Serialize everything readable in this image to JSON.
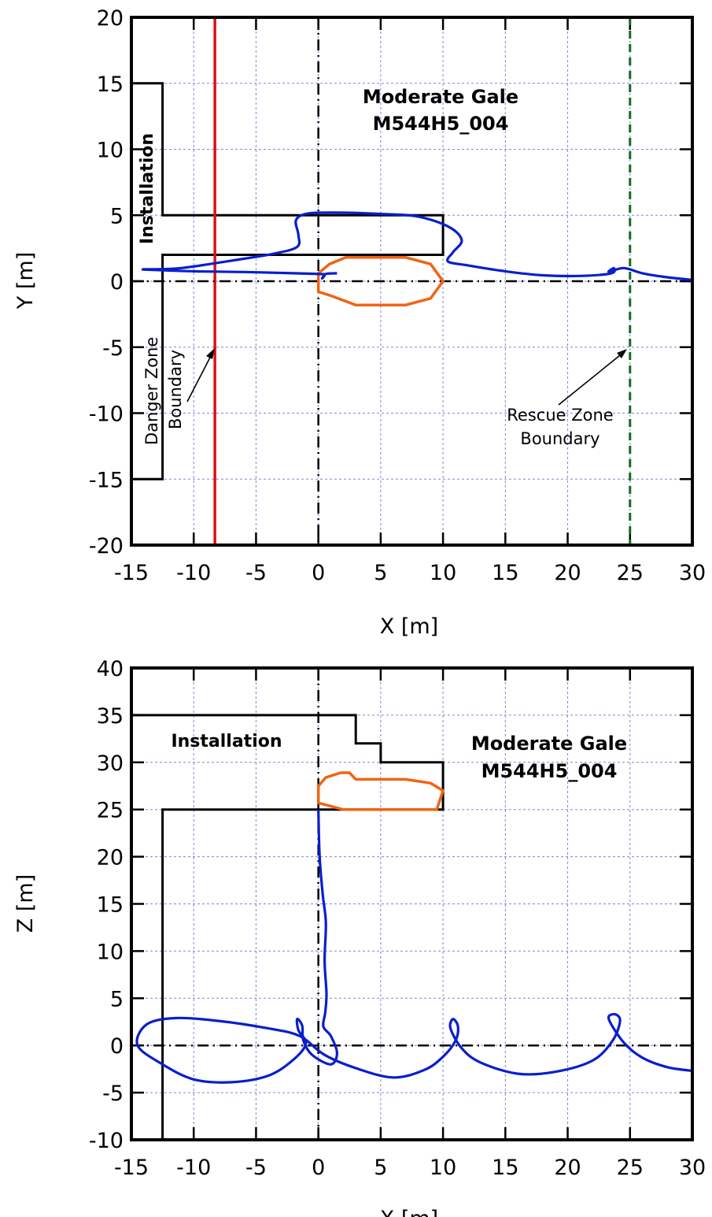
{
  "chart_data": [
    {
      "id": "xy",
      "type": "line",
      "title": "Moderate Gale",
      "subtitle": "M544H5_004",
      "xlabel": "X [m]",
      "ylabel": "Y [m]",
      "xlim": [
        -15,
        30
      ],
      "ylim": [
        -20,
        20
      ],
      "xticks": [
        -15,
        -10,
        -5,
        0,
        5,
        10,
        15,
        20,
        25,
        30
      ],
      "yticks": [
        -20,
        -15,
        -10,
        -5,
        0,
        5,
        10,
        15,
        20
      ],
      "xtick_labels": [
        "-15",
        "-10",
        "-5",
        "0",
        "5",
        "10",
        "15",
        "20",
        "25",
        "30"
      ],
      "ytick_labels": [
        "-20",
        "-15",
        "-10",
        "-5",
        "0",
        "5",
        "10",
        "15",
        "20"
      ],
      "grid": true,
      "annotations": {
        "installation": "Installation",
        "danger_zone": [
          "Danger Zone",
          "Boundary"
        ],
        "rescue_zone": [
          "Rescue Zone",
          "Boundary"
        ]
      },
      "danger_boundary_x": -8.3,
      "rescue_boundary_x": 25,
      "colors": {
        "trajectory": "#0a1ecc",
        "lifeboat": "#f06414",
        "danger": "#e01010",
        "rescue": "#0f6e1e",
        "structure": "#000000"
      },
      "installation_outline": [
        [
          -15,
          15
        ],
        [
          -12.5,
          15
        ],
        [
          -12.5,
          5
        ],
        [
          10,
          5
        ],
        [
          10,
          2
        ],
        [
          -12.5,
          2
        ],
        [
          -12.5,
          -15
        ],
        [
          -15,
          -15
        ]
      ],
      "lifeboat_outline": [
        [
          0,
          -0.8
        ],
        [
          0,
          0.6
        ],
        [
          0.9,
          1.3
        ],
        [
          2.2,
          1.8
        ],
        [
          7,
          1.8
        ],
        [
          9,
          1.3
        ],
        [
          10,
          0
        ],
        [
          9,
          -1.3
        ],
        [
          7,
          -1.8
        ],
        [
          3,
          -1.8
        ],
        [
          1,
          -1.1
        ],
        [
          0,
          -0.8
        ]
      ],
      "trajectory": [
        [
          1.5,
          0.6
        ],
        [
          0.6,
          0.55
        ],
        [
          0.3,
          0.2
        ],
        [
          0.5,
          0.5
        ],
        [
          0,
          0.55
        ],
        [
          -2,
          0.6
        ],
        [
          -6,
          0.7
        ],
        [
          -10,
          0.75
        ],
        [
          -13,
          0.85
        ],
        [
          -14,
          0.9
        ],
        [
          -11,
          1.0
        ],
        [
          -6,
          1.7
        ],
        [
          -3.5,
          2.1
        ],
        [
          -1.7,
          2.6
        ],
        [
          -1.6,
          3.5
        ],
        [
          -1.8,
          4.6
        ],
        [
          -1,
          5.1
        ],
        [
          1,
          5.2
        ],
        [
          5,
          5.1
        ],
        [
          8,
          4.9
        ],
        [
          10.5,
          4.1
        ],
        [
          11.5,
          3.1
        ],
        [
          10.8,
          2.2
        ],
        [
          10.4,
          1.5
        ],
        [
          12,
          1.2
        ],
        [
          15,
          0.75
        ],
        [
          18,
          0.45
        ],
        [
          21,
          0.4
        ],
        [
          23.5,
          0.6
        ],
        [
          23.7,
          1.0
        ],
        [
          23.3,
          0.7
        ],
        [
          24.5,
          1.0
        ],
        [
          26,
          0.6
        ],
        [
          28,
          0.3
        ],
        [
          30,
          0.1
        ]
      ]
    },
    {
      "id": "xz",
      "type": "line",
      "title": "Moderate Gale",
      "subtitle": "M544H5_004",
      "xlabel": "X [m]",
      "ylabel": "Z [m]",
      "xlim": [
        -15,
        30
      ],
      "ylim": [
        -10,
        40
      ],
      "xticks": [
        -15,
        -10,
        -5,
        0,
        5,
        10,
        15,
        20,
        25,
        30
      ],
      "yticks": [
        -10,
        -5,
        0,
        5,
        10,
        15,
        20,
        25,
        30,
        35,
        40
      ],
      "xtick_labels": [
        "-15",
        "-10",
        "-5",
        "0",
        "5",
        "10",
        "15",
        "20",
        "25",
        "30"
      ],
      "ytick_labels": [
        "-10",
        "-5",
        "0",
        "5",
        "10",
        "15",
        "20",
        "25",
        "30",
        "35",
        "40"
      ],
      "grid": true,
      "annotations": {
        "installation": "Installation"
      },
      "colors": {
        "trajectory": "#0a1ecc",
        "lifeboat": "#f06414",
        "structure": "#000000"
      },
      "installation_outline": [
        [
          -15,
          35
        ],
        [
          3,
          35
        ],
        [
          3,
          32
        ],
        [
          5,
          32
        ],
        [
          5,
          30
        ],
        [
          10,
          30
        ],
        [
          10,
          25
        ],
        [
          -12.5,
          25
        ],
        [
          -12.5,
          -10
        ]
      ],
      "lifeboat_outline": [
        [
          0,
          25.7
        ],
        [
          0,
          27.5
        ],
        [
          0.6,
          28.4
        ],
        [
          1.8,
          28.9
        ],
        [
          2.5,
          28.9
        ],
        [
          3,
          28.2
        ],
        [
          7,
          28.2
        ],
        [
          9,
          27.8
        ],
        [
          10,
          27
        ],
        [
          9.5,
          25
        ],
        [
          2,
          25
        ],
        [
          0,
          25.7
        ]
      ],
      "trajectory": [
        [
          0,
          25
        ],
        [
          0.1,
          20
        ],
        [
          0.35,
          16
        ],
        [
          0.6,
          13
        ],
        [
          0.5,
          9
        ],
        [
          0.65,
          5.5
        ],
        [
          0.55,
          3.5
        ],
        [
          0.4,
          2
        ],
        [
          1,
          1
        ],
        [
          1.5,
          -0.8
        ],
        [
          1,
          -2
        ],
        [
          -0.5,
          -1
        ],
        [
          -1.2,
          0.5
        ],
        [
          -1.3,
          2.1
        ],
        [
          -1.7,
          2.8
        ],
        [
          -1.6,
          1.6
        ],
        [
          -1,
          0.2
        ],
        [
          -2,
          -1.5
        ],
        [
          -4,
          -3.2
        ],
        [
          -7,
          -3.9
        ],
        [
          -10,
          -3.6
        ],
        [
          -12.5,
          -2
        ],
        [
          -14.5,
          0
        ],
        [
          -13.8,
          2.2
        ],
        [
          -11.5,
          2.9
        ],
        [
          -8,
          2.6
        ],
        [
          -4,
          1.8
        ],
        [
          -1.5,
          1
        ],
        [
          0.5,
          -1
        ],
        [
          3,
          -2.4
        ],
        [
          6,
          -3.4
        ],
        [
          8.5,
          -2.6
        ],
        [
          10,
          -1.2
        ],
        [
          11,
          0.5
        ],
        [
          11.2,
          2
        ],
        [
          10.8,
          2.8
        ],
        [
          10.6,
          1.8
        ],
        [
          11.5,
          -0.3
        ],
        [
          13,
          -1.8
        ],
        [
          16,
          -3
        ],
        [
          19,
          -2.8
        ],
        [
          22,
          -1.6
        ],
        [
          23.6,
          0.5
        ],
        [
          24.2,
          2.6
        ],
        [
          23.8,
          3.3
        ],
        [
          23.3,
          2.8
        ],
        [
          24.5,
          0.3
        ],
        [
          26,
          -1.3
        ],
        [
          28,
          -2.3
        ],
        [
          30,
          -2.7
        ]
      ]
    }
  ]
}
